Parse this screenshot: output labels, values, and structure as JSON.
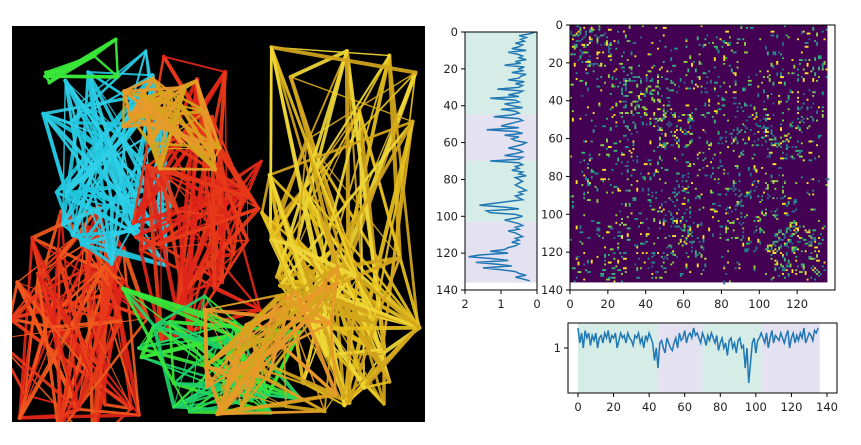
{
  "render_image": {
    "kind": "3d-network-rendering",
    "background": "#000000",
    "palette": [
      "#e83a1a",
      "#f25a1e",
      "#e0251a",
      "#2fd0e8",
      "#22c7e0",
      "#3ae83a",
      "#1fd36a",
      "#e8c21e",
      "#f0d838",
      "#d4a61c",
      "#e89a2a"
    ]
  },
  "chart_data": [
    {
      "id": "left-profile",
      "type": "line",
      "orientation": "vertical",
      "xlim": [
        2,
        0
      ],
      "ylim": [
        140,
        0
      ],
      "xticks": [
        2,
        1,
        0
      ],
      "yticks": [
        0,
        20,
        40,
        60,
        80,
        100,
        120,
        140
      ],
      "regions": [
        {
          "from": 0,
          "to": 45,
          "color": "#d6ece6"
        },
        {
          "from": 45,
          "to": 70,
          "color": "#e4e1f0"
        },
        {
          "from": 70,
          "to": 103,
          "color": "#d6ece6"
        },
        {
          "from": 103,
          "to": 136,
          "color": "#e4e1f0"
        }
      ],
      "line_color": "#1f77b4",
      "values": [
        0.05,
        0.2,
        0.5,
        0.3,
        0.45,
        0.35,
        0.6,
        0.4,
        0.5,
        0.7,
        0.3,
        0.8,
        0.55,
        0.4,
        0.5,
        0.3,
        0.6,
        0.45,
        0.9,
        0.35,
        0.5,
        0.4,
        0.7,
        0.3,
        0.45,
        0.5,
        0.8,
        0.35,
        0.6,
        0.4,
        0.5,
        1.1,
        0.4,
        0.5,
        0.8,
        0.5,
        1.3,
        0.6,
        0.5,
        0.9,
        0.7,
        0.4,
        1.0,
        0.6,
        0.5,
        0.7,
        1.2,
        0.5,
        0.4,
        0.6,
        0.8,
        1.0,
        0.5,
        1.4,
        0.6,
        0.4,
        0.9,
        0.5,
        0.7,
        0.6,
        0.3,
        0.4,
        0.6,
        0.8,
        0.5,
        0.4,
        0.6,
        0.9,
        0.4,
        0.5,
        1.3,
        0.5,
        0.4,
        0.6,
        0.5,
        0.7,
        0.4,
        0.5,
        0.3,
        0.6,
        0.5,
        0.4,
        0.5,
        0.6,
        0.5,
        0.4,
        0.3,
        0.5,
        0.4,
        0.6,
        0.5,
        0.4,
        0.8,
        1.2,
        1.6,
        0.9,
        0.5,
        1.4,
        1.3,
        0.6,
        0.4,
        0.6,
        0.9,
        0.7,
        0.5,
        0.4,
        0.6,
        0.5,
        0.8,
        0.6,
        0.5,
        0.4,
        0.6,
        0.5,
        0.7,
        0.5,
        0.6,
        0.8,
        0.9,
        1.3,
        0.8,
        1.6,
        1.9,
        1.2,
        0.8,
        1.7,
        1.1,
        0.7,
        1.5,
        1.0,
        0.6,
        0.5,
        0.3,
        0.6,
        0.4,
        0.2
      ]
    },
    {
      "id": "contact-heatmap",
      "type": "heatmap",
      "size": 136,
      "xlim": [
        0,
        140
      ],
      "ylim": [
        140,
        0
      ],
      "xticks": [
        0,
        20,
        40,
        60,
        80,
        100,
        120
      ],
      "yticks": [
        0,
        20,
        40,
        60,
        80,
        100,
        120,
        140
      ],
      "background": "#440154",
      "colormap": [
        "#440154",
        "#31688e",
        "#21918c",
        "#35b779",
        "#90d743",
        "#fde725"
      ],
      "note": "sparse pairwise map, values not labeled"
    },
    {
      "id": "bottom-profile",
      "type": "line",
      "orientation": "horizontal",
      "xlim": [
        0,
        140
      ],
      "ylim": [
        0.1,
        1.5
      ],
      "xticks": [
        0,
        20,
        40,
        60,
        80,
        100,
        120,
        140
      ],
      "yticks": [
        1
      ],
      "regions": [
        {
          "from": 0,
          "to": 45,
          "color": "#d6ece6"
        },
        {
          "from": 45,
          "to": 70,
          "color": "#e4e1f0"
        },
        {
          "from": 70,
          "to": 103,
          "color": "#d6ece6"
        },
        {
          "from": 103,
          "to": 136,
          "color": "#e4e1f0"
        }
      ],
      "line_color": "#1f77b4",
      "values": [
        1.4,
        1.1,
        1.3,
        1.0,
        1.35,
        1.2,
        1.3,
        1.05,
        1.25,
        1.15,
        1.3,
        1.0,
        1.2,
        1.25,
        1.1,
        1.3,
        1.2,
        1.35,
        1.1,
        1.25,
        1.2,
        1.3,
        1.0,
        1.15,
        1.3,
        1.2,
        1.25,
        1.1,
        1.3,
        1.2,
        1.15,
        1.05,
        1.25,
        1.2,
        1.3,
        1.1,
        1.2,
        1.0,
        1.25,
        1.15,
        1.3,
        1.2,
        1.1,
        0.75,
        1.0,
        0.6,
        1.1,
        1.15,
        1.0,
        0.9,
        1.2,
        1.1,
        1.0,
        0.95,
        1.1,
        1.2,
        1.0,
        1.3,
        1.15,
        1.2,
        1.35,
        1.1,
        1.25,
        1.3,
        1.2,
        1.4,
        1.25,
        1.3,
        1.2,
        1.1,
        1.3,
        1.2,
        1.05,
        1.25,
        1.15,
        1.3,
        1.2,
        1.1,
        1.25,
        0.95,
        1.1,
        1.2,
        1.0,
        1.1,
        0.85,
        1.15,
        1.2,
        1.0,
        1.1,
        0.9,
        1.15,
        1.2,
        1.0,
        1.05,
        0.6,
        1.0,
        0.3,
        0.7,
        1.1,
        1.2,
        0.9,
        1.15,
        1.2,
        1.3,
        1.2,
        1.1,
        1.3,
        1.0,
        1.2,
        1.35,
        1.1,
        1.25,
        1.2,
        1.15,
        1.3,
        1.2,
        1.1,
        1.25,
        1.35,
        1.0,
        1.2,
        1.3,
        1.1,
        1.25,
        1.15,
        1.3,
        1.2,
        1.4,
        1.1,
        1.2,
        1.3,
        1.25,
        1.15,
        1.35,
        1.3,
        1.4
      ]
    }
  ]
}
